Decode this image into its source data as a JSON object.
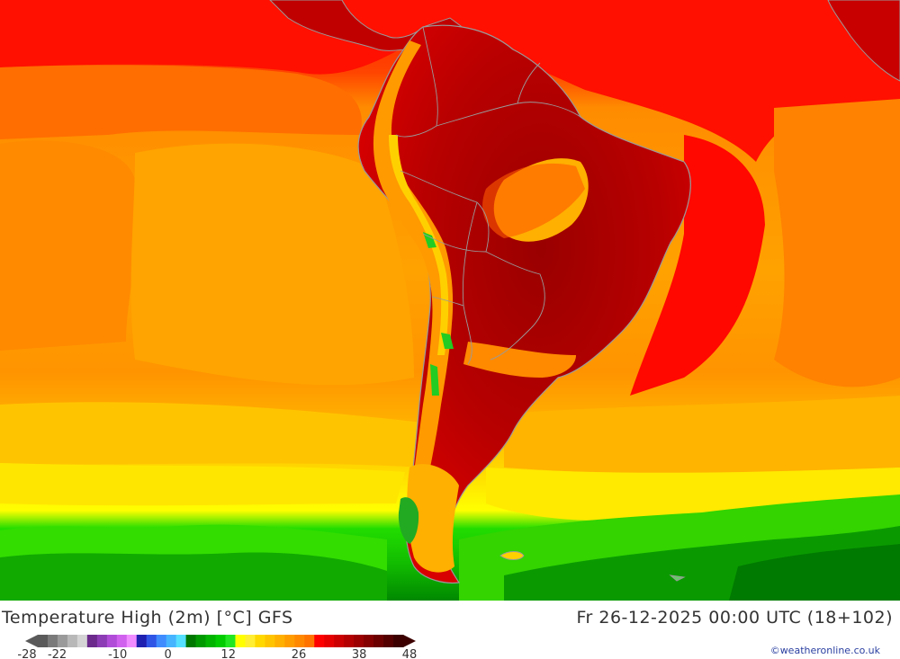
{
  "map": {
    "title": "Temperature High (2m) [°C] GFS",
    "valid_time": "Fr 26-12-2025 00:00 UTC (18+102)",
    "copyright": "©weatheronline.co.uk",
    "region": "South America",
    "colors": {
      "ocean_warm": "#ff0000",
      "ocean_orange": "#ff8c00",
      "ocean_amber": "#ffa500",
      "ocean_yellow": "#ffd400",
      "ocean_bright_yellow": "#ffff00",
      "ocean_cold_green": "#33dd00",
      "ocean_dark_green": "#009900",
      "land_hot": "#c80000",
      "land_very_hot": "#a00000",
      "andes_cool": "#ffb000",
      "patagonia_green": "#22aa22",
      "coastline": "#9a9a9a"
    }
  },
  "legend": {
    "labels": [
      {
        "text": "-28",
        "value": -28
      },
      {
        "text": "-22",
        "value": -22
      },
      {
        "text": "-10",
        "value": -10
      },
      {
        "text": "0",
        "value": 0
      },
      {
        "text": "12",
        "value": 12
      },
      {
        "text": "26",
        "value": 26
      },
      {
        "text": "38",
        "value": 38
      },
      {
        "text": "48",
        "value": 48
      }
    ],
    "colors": [
      "#5a5a5a",
      "#7a7a7a",
      "#9a9a9a",
      "#b8b8b8",
      "#d4d4d4",
      "#6b2a8c",
      "#8c3cb4",
      "#b04cd8",
      "#d060ee",
      "#f08cff",
      "#1f1fb0",
      "#2f55e6",
      "#3f8cff",
      "#46b4ff",
      "#55e0ff",
      "#007800",
      "#009a00",
      "#00b400",
      "#00cc00",
      "#22e622",
      "#ffff00",
      "#ffee33",
      "#ffd800",
      "#ffc400",
      "#ffb000",
      "#ff9c00",
      "#ff8800",
      "#ff7400",
      "#ff0000",
      "#e60000",
      "#cc0000",
      "#b40000",
      "#9c0000",
      "#840000",
      "#6c0000",
      "#540000",
      "#3c0000"
    ]
  }
}
